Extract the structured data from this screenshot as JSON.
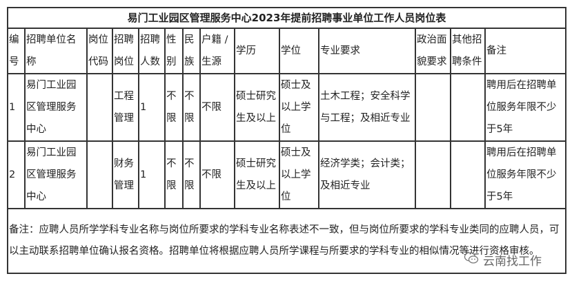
{
  "title": "易门工业园区管理服务中心2023年提前招聘事业单位工作人员岗位表",
  "headers": [
    "编号",
    "招聘单位名称",
    "岗位代码",
    "招聘岗位",
    "招聘人数",
    "性别",
    "民族",
    "户籍 / 生源",
    "学历",
    "学位",
    "专业要求",
    "政治面貌要求",
    "其他招聘条件",
    "备注"
  ],
  "rows": [
    [
      "1",
      "易门工业园区管理服务中心",
      "",
      "工程管理",
      "1",
      "不限",
      "不限",
      "不限",
      "硕士研究生及以上",
      "硕士及以上学位",
      "土木工程；安全科学与工程；及相近专业",
      "",
      "",
      "聘用后在招聘单位服务年限不少于5年"
    ],
    [
      "2",
      "易门工业园区管理服务中心",
      "",
      "财务管理",
      "1",
      "不限",
      "不限",
      "不限",
      "硕士研究生及以上",
      "硕士及以上学位",
      "经济学类；会计类；及相近专业",
      "",
      "",
      "聘用后在招聘单位服务年限不少于5年"
    ]
  ],
  "note": "备注：应聘人员所学学科专业名称与岗位所要求的学科专业名称表述不一致，但与岗位所要求的学科专业类同的应聘人员，可以主动联系招聘单位确认报名资格。招聘单位将根据应聘人员所学课程与所要求的学科专业的相似情况等进行资格审核。",
  "watermark": {
    "icon": "wechat-icon",
    "text": "云南找工作"
  }
}
